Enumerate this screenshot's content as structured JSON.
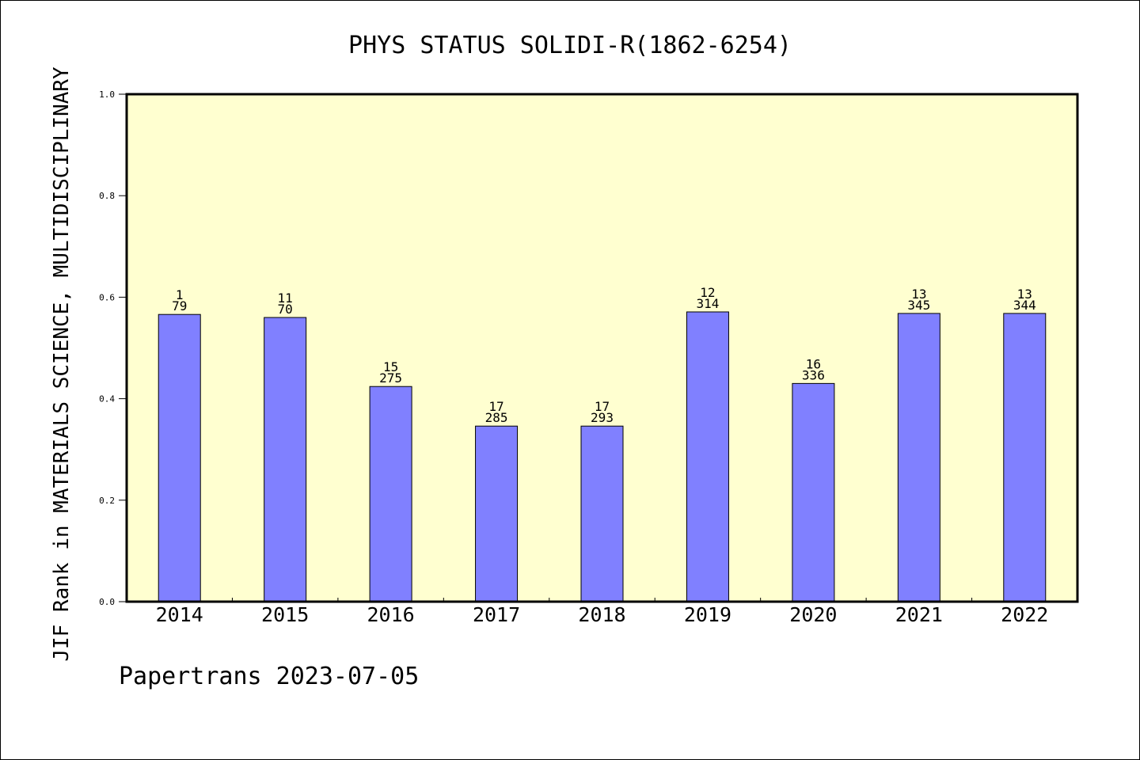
{
  "chart_data": {
    "type": "bar",
    "title": "PHYS STATUS SOLIDI-R(1862-6254)",
    "xlabel": "",
    "ylabel": "JIF Rank in MATERIALS SCIENCE, MULTIDISCIPLINARY",
    "ylim": [
      0,
      1.0
    ],
    "yticks": [
      "0.0",
      "0.2",
      "0.4",
      "0.6",
      "0.8",
      "1.0"
    ],
    "grid": false,
    "categories": [
      "2014",
      "2015",
      "2016",
      "2017",
      "2018",
      "2019",
      "2020",
      "2021",
      "2022"
    ],
    "values": [
      0.566,
      0.56,
      0.424,
      0.346,
      0.346,
      0.571,
      0.43,
      0.568,
      0.568
    ],
    "rank": [
      "1",
      "11",
      "15",
      "17",
      "17",
      "12",
      "16",
      "13",
      "13"
    ],
    "total": [
      "79",
      "70",
      "275",
      "285",
      "293",
      "314",
      "336",
      "345",
      "344"
    ],
    "colors": {
      "plot_bg": "#ffffd0",
      "bar": "#8080ff",
      "axis": "#000000"
    }
  },
  "footer": "Papertrans 2023-07-05"
}
